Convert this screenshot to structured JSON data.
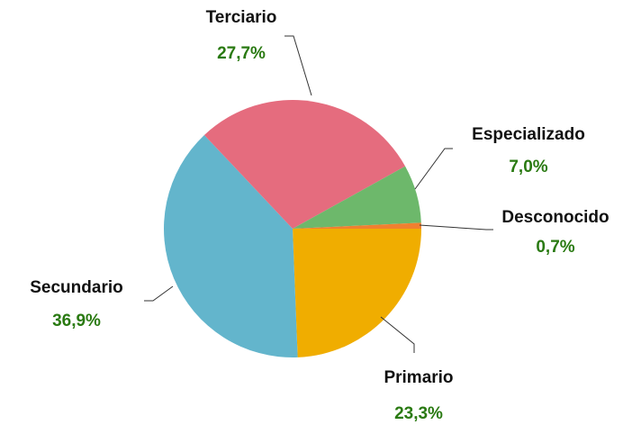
{
  "chart_data": {
    "type": "pie",
    "categories": [
      "Primario",
      "Secundario",
      "Terciario",
      "Especializado",
      "Desconocido"
    ],
    "values": [
      23.3,
      36.9,
      27.7,
      7.0,
      0.7
    ],
    "value_labels": [
      "23,3%",
      "36,9%",
      "27,7%",
      "7,0%",
      "0,7%"
    ],
    "colors": [
      "#f0ad00",
      "#63b5cc",
      "#e56c7e",
      "#6db86b",
      "#f08030"
    ]
  }
}
